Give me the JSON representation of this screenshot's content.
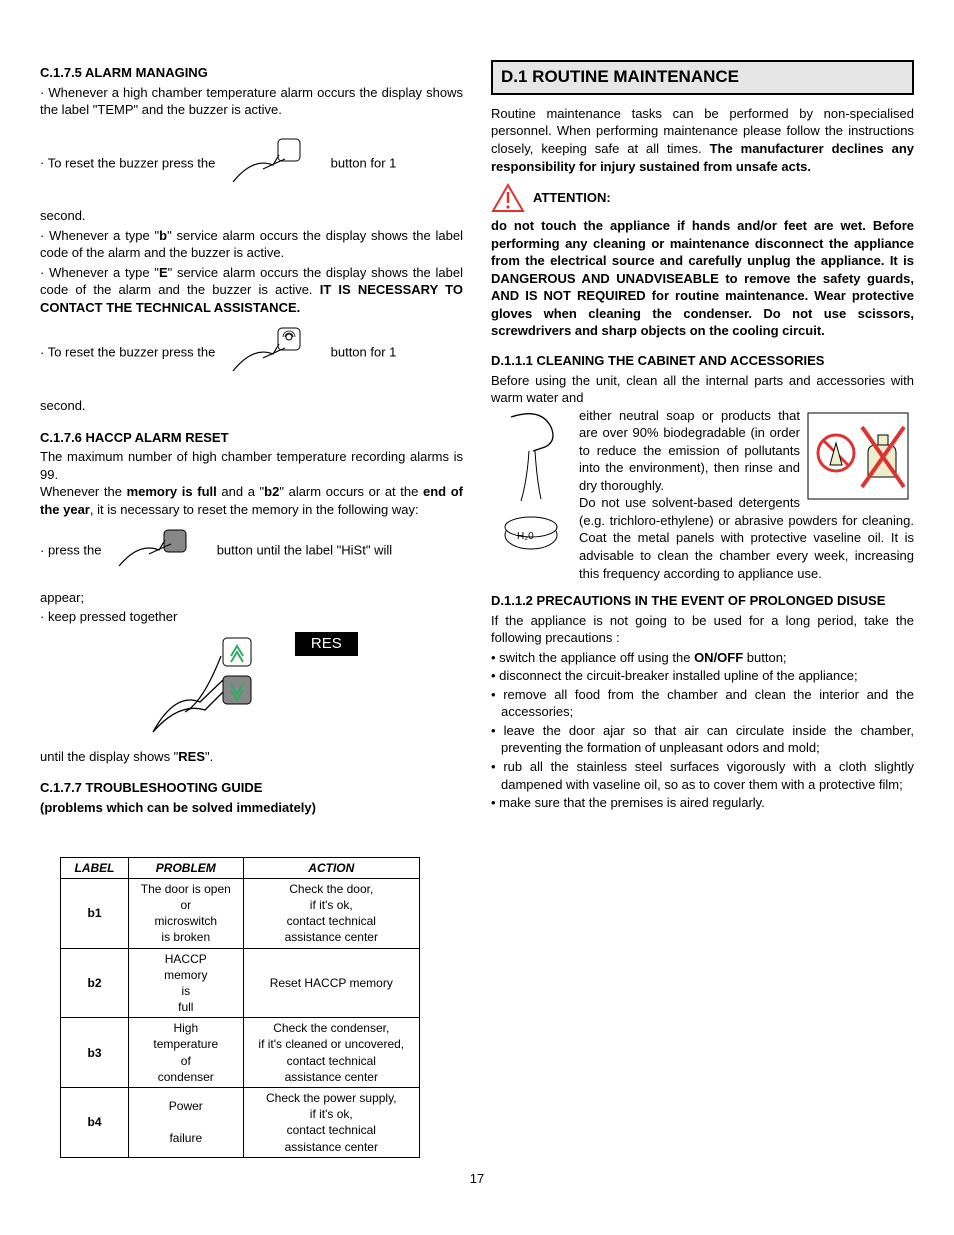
{
  "left": {
    "sec_c175_title": "C.1.7.5 ALARM MANAGING",
    "c175_p1": "Whenever a high chamber temperature alarm occurs the display shows the label \"TEMP\" and the buzzer is active.",
    "c175_p2a": "To reset the buzzer press the",
    "c175_p2b": "button for 1",
    "c175_p2c": "second.",
    "c175_p3a": "Whenever a type \"",
    "c175_p3b": "b",
    "c175_p3c": "\" service alarm occurs the display shows the label code of the alarm and the buzzer is active.",
    "c175_p4a": "Whenever a type \"",
    "c175_p4b": "E",
    "c175_p4c": "\" service alarm occurs the display shows the label code of the alarm and the buzzer is active.  ",
    "c175_p4d": "IT IS NECESSARY TO CONTACT THE TECHNICAL ASSISTANCE.",
    "c175_p5a": "To reset the buzzer press the",
    "c175_p5b": "button for 1",
    "c175_p5c": "second.",
    "sec_c176_title": "C.1.7.6 HACCP ALARM RESET",
    "c176_p1": "The maximum number of high chamber temperature recording alarms is 99.",
    "c176_p2a": "Whenever the ",
    "c176_p2b": "memory is full",
    "c176_p2c": " and a \"",
    "c176_p2d": "b2",
    "c176_p2e": "\" alarm occurs or at the ",
    "c176_p2f": "end of the year",
    "c176_p2g": ", it is necessary to reset the memory in the following way:",
    "c176_p3a": "press the",
    "c176_p3b": "button until the label \"HiSt\" will",
    "c176_p3c": "appear;",
    "c176_p4": "keep pressed together",
    "c176_res": "RES",
    "c176_p5a": "until the display shows \"",
    "c176_p5b": "RES",
    "c176_p5c": "\".",
    "sec_c177_title": "C.1.7.7 TROUBLESHOOTING GUIDE",
    "sec_c177_sub": "(problems which can be solved immediately)",
    "table": {
      "headers": [
        "LABEL",
        "PROBLEM",
        "ACTION"
      ],
      "rows": [
        [
          "b1",
          "The door is open\nor\nmicroswitch\nis broken",
          "Check the door,\nif it's ok,\ncontact technical\nassistance center"
        ],
        [
          "b2",
          "HACCP\nmemory\nis\nfull",
          "Reset HACCP memory"
        ],
        [
          "b3",
          "High\ntemperature\nof\ncondenser",
          "Check the condenser,\nif it's cleaned or uncovered,\ncontact technical\nassistance center"
        ],
        [
          "b4",
          "Power\n\nfailure",
          "Check the power supply,\nif it's ok,\ncontact technical\nassistance center"
        ]
      ]
    }
  },
  "right": {
    "sec_d1_title": "D.1 ROUTINE MAINTENANCE",
    "d1_p1a": "Routine maintenance tasks can be performed by non-specialised personnel.  When performing maintenance please follow the instructions closely, keeping safe at all times.  ",
    "d1_p1b": "The manufacturer declines any responsibility for injury sustained from unsafe acts.",
    "attention": "ATTENTION:",
    "d1_warn": "do not touch the appliance if hands and/or feet are wet.  Before performing any cleaning or maintenance disconnect the appliance from the electrical source and carefully unplug the appliance.  It is DANGEROUS AND UNADVISEABLE  to remove the safety guards, AND IS NOT REQUIRED for routine maintenance.  Wear protective gloves when cleaning the condenser.  Do not use scissors, screwdrivers and sharp objects on the cooling circuit.",
    "sec_d111_title": "D.1.1.1 CLEANING THE CABINET AND ACCESSORIES",
    "d111_p1": "Before using the unit, clean all the internal parts and accessories with warm water and",
    "d111_p2": "either neutral soap or products that are over 90% biodegradable (in order to reduce the emission of pollutants into the environment), then rinse and dry thoroughly.",
    "d111_p3": "Do not use solvent-based detergents (e.g. trichloro-ethylene) or abrasive powders for cleaning.  Coat the metal panels with protective vaseline oil.  It is advisable to clean the chamber every week, increasing this frequency according to appliance use.",
    "sec_d112_title": "D.1.1.2 PRECAUTIONS IN THE EVENT OF PROLONGED DISUSE",
    "d112_p1": "If the appliance is not going to be used for a long period, take the following precautions :",
    "d112_li1a": "switch the appliance off using the ",
    "d112_li1b": "ON/OFF",
    "d112_li1c": " button;",
    "d112_li2": "disconnect the circuit-breaker installed upline of the appliance;",
    "d112_li3": "remove all food from the chamber and clean the interior and the accessories;",
    "d112_li4": "leave the door ajar so that air can circulate inside the chamber, preventing the formation of unpleasant odors and mold;",
    "d112_li5": "rub all the stainless steel surfaces vigorously with a cloth slightly dampened with vaseline oil, so as to cover them with a protective film;",
    "d112_li6": "make sure that the premises is aired regularly."
  },
  "page_number": "17"
}
